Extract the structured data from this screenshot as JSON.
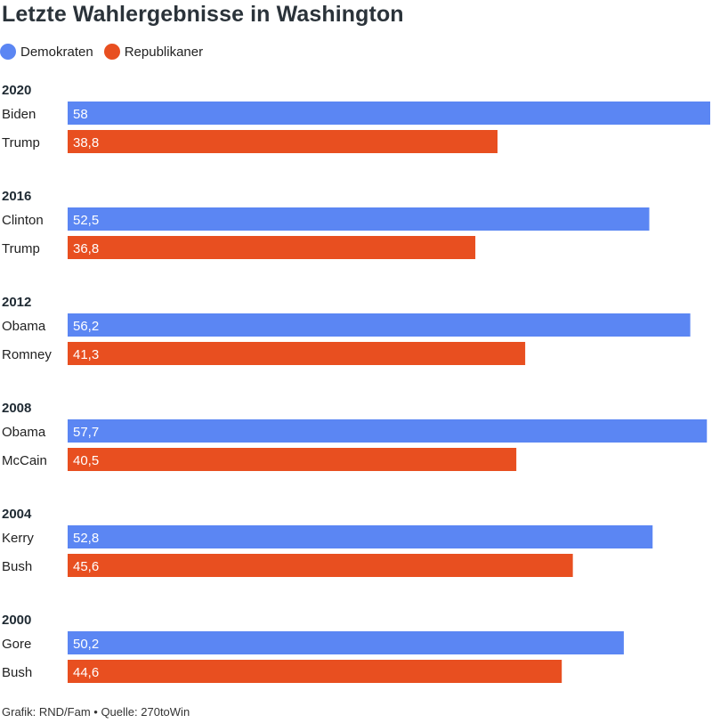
{
  "title": "Letzte Wahlergebnisse in Washington",
  "footer": "Grafik: RND/Fam • Quelle: 270toWin",
  "colors": {
    "democrats": "#5b86f3",
    "republicans": "#e84f20"
  },
  "legend": [
    {
      "label": "Demokraten",
      "color": "#5b86f3"
    },
    {
      "label": "Republikaner",
      "color": "#e84f20"
    }
  ],
  "chart_data": {
    "type": "bar",
    "orientation": "horizontal",
    "xlim": [
      0,
      58
    ],
    "groups": [
      {
        "year": "2020",
        "rows": [
          {
            "candidate": "Biden",
            "party": "democrats",
            "value": 58,
            "label": "58"
          },
          {
            "candidate": "Trump",
            "party": "republicans",
            "value": 38.8,
            "label": "38,8"
          }
        ]
      },
      {
        "year": "2016",
        "rows": [
          {
            "candidate": "Clinton",
            "party": "democrats",
            "value": 52.5,
            "label": "52,5"
          },
          {
            "candidate": "Trump",
            "party": "republicans",
            "value": 36.8,
            "label": "36,8"
          }
        ]
      },
      {
        "year": "2012",
        "rows": [
          {
            "candidate": "Obama",
            "party": "democrats",
            "value": 56.2,
            "label": "56,2"
          },
          {
            "candidate": "Romney",
            "party": "republicans",
            "value": 41.3,
            "label": "41,3"
          }
        ]
      },
      {
        "year": "2008",
        "rows": [
          {
            "candidate": "Obama",
            "party": "democrats",
            "value": 57.7,
            "label": "57,7"
          },
          {
            "candidate": "McCain",
            "party": "republicans",
            "value": 40.5,
            "label": "40,5"
          }
        ]
      },
      {
        "year": "2004",
        "rows": [
          {
            "candidate": "Kerry",
            "party": "democrats",
            "value": 52.8,
            "label": "52,8"
          },
          {
            "candidate": "Bush",
            "party": "republicans",
            "value": 45.6,
            "label": "45,6"
          }
        ]
      },
      {
        "year": "2000",
        "rows": [
          {
            "candidate": "Gore",
            "party": "democrats",
            "value": 50.2,
            "label": "50,2"
          },
          {
            "candidate": "Bush",
            "party": "republicans",
            "value": 44.6,
            "label": "44,6"
          }
        ]
      }
    ]
  }
}
